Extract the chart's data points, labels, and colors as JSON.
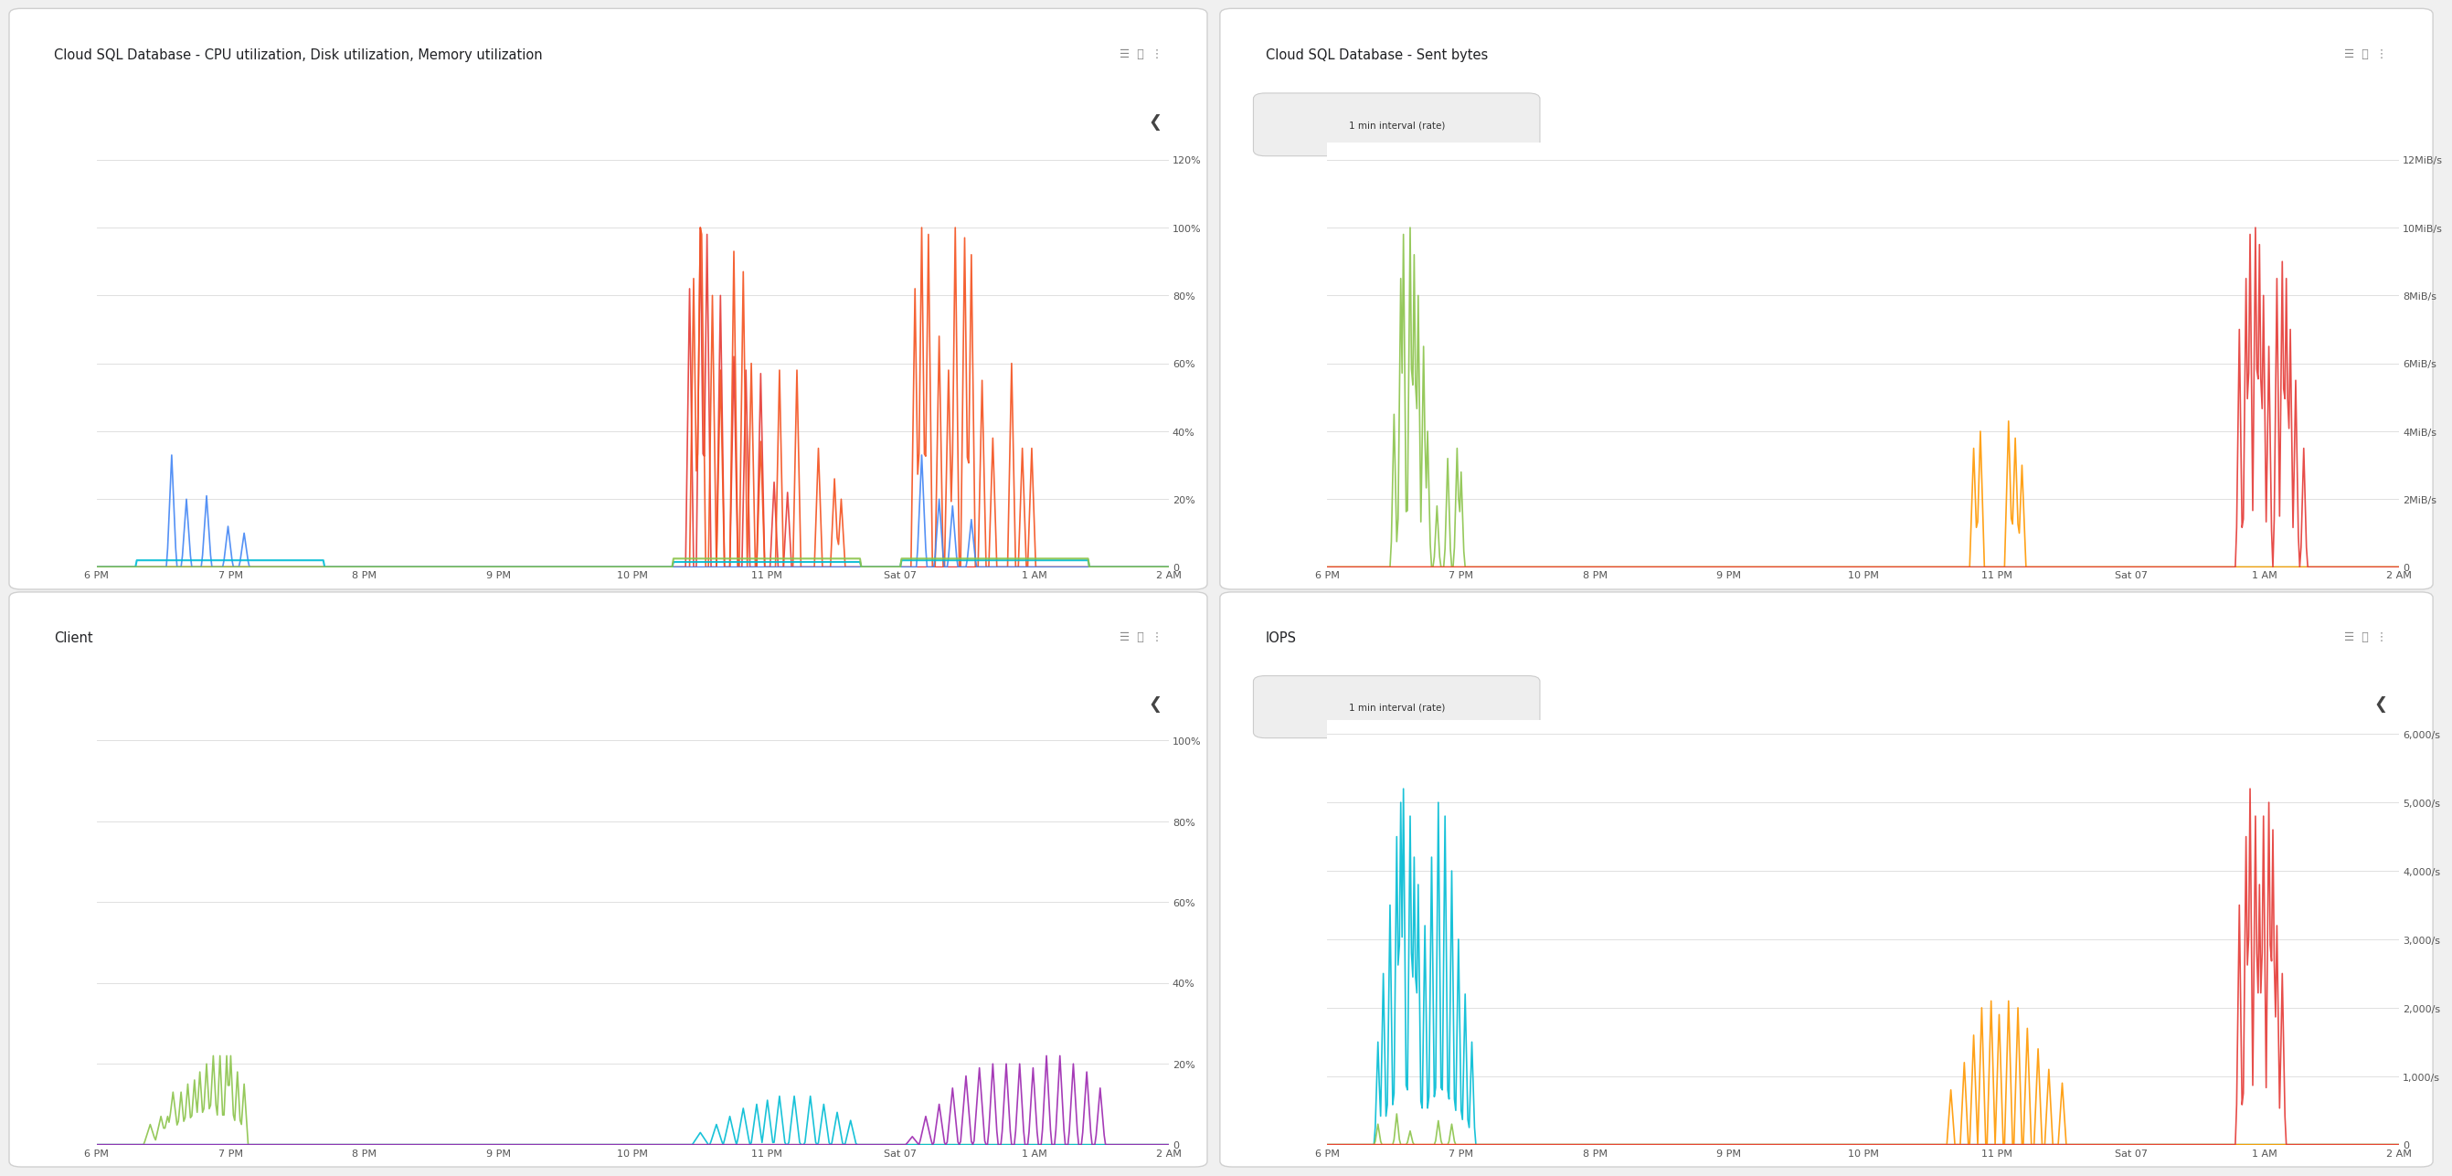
{
  "panels": [
    {
      "title": "Cloud SQL Database - CPU utilization, Disk utilization, Memory utilization",
      "subtitle": null,
      "yticks_vals": [
        0,
        20,
        40,
        60,
        80,
        100,
        120
      ],
      "yticks_labels": [
        "0",
        "20%",
        "40%",
        "60%",
        "80%",
        "100%",
        "120%"
      ],
      "ymax": 125,
      "has_arrow": true,
      "row": 0,
      "col": 0
    },
    {
      "title": "Cloud SQL Database - Sent bytes",
      "subtitle": "1 min interval (rate)",
      "yticks_vals": [
        0,
        2,
        4,
        6,
        8,
        10,
        12
      ],
      "yticks_labels": [
        "0",
        "2MiB/s",
        "4MiB/s",
        "6MiB/s",
        "8MiB/s",
        "10MiB/s",
        "12MiB/s"
      ],
      "ymax": 12.5,
      "has_arrow": false,
      "row": 0,
      "col": 1
    },
    {
      "title": "Client",
      "subtitle": null,
      "yticks_vals": [
        0,
        20,
        40,
        60,
        80,
        100
      ],
      "yticks_labels": [
        "0",
        "20%",
        "40%",
        "60%",
        "80%",
        "100%"
      ],
      "ymax": 105,
      "has_arrow": true,
      "row": 1,
      "col": 0
    },
    {
      "title": "IOPS",
      "subtitle": "1 min interval (rate)",
      "yticks_vals": [
        0,
        1000,
        2000,
        3000,
        4000,
        5000,
        6000
      ],
      "yticks_labels": [
        "0",
        "1,000/s",
        "2,000/s",
        "3,000/s",
        "4,000/s",
        "5,000/s",
        "6,000/s"
      ],
      "ymax": 6200,
      "has_arrow": true,
      "row": 1,
      "col": 1
    }
  ],
  "xtick_labels": [
    "6 PM",
    "7 PM",
    "8 PM",
    "9 PM",
    "10 PM",
    "11 PM",
    "Sat 07",
    "1 AM",
    "2 AM"
  ],
  "bg_color": "#f8f8f8",
  "panel_bg": "#ffffff",
  "grid_color": "#e0e0e0",
  "title_color": "#202124",
  "tick_color": "#555555"
}
